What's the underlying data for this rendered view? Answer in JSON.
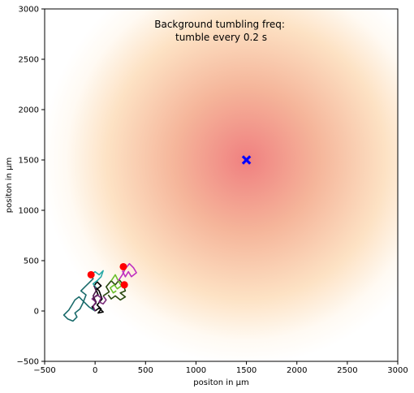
{
  "chart_data": {
    "type": "scatter",
    "title": "",
    "annotation": [
      "Background tumbling freq:",
      "tumble every 0.2 s"
    ],
    "xlabel": "positon in µm",
    "ylabel": "positon in µm",
    "xlim": [
      -500,
      3000
    ],
    "ylim": [
      -500,
      3000
    ],
    "x_ticks": [
      -500,
      0,
      500,
      1000,
      1500,
      2000,
      2500,
      3000
    ],
    "y_ticks": [
      -500,
      0,
      500,
      1000,
      1500,
      2000,
      2500,
      3000
    ],
    "grid": false,
    "background": {
      "type": "radial-gradient",
      "center": [
        1500,
        1500
      ],
      "colors": [
        "#f08080",
        "#f5b59a",
        "#fde2c4",
        "#fffaf3",
        "#ffffff"
      ]
    },
    "source": {
      "x": 1500,
      "y": 1500,
      "marker": "x",
      "color": "#0000ff"
    },
    "trajectories": [
      {
        "color": "#000000",
        "points": [
          [
            0,
            0
          ],
          [
            -30,
            40
          ],
          [
            10,
            80
          ],
          [
            -20,
            130
          ],
          [
            30,
            160
          ],
          [
            10,
            210
          ],
          [
            60,
            250
          ],
          [
            20,
            290
          ],
          [
            -10,
            250
          ],
          [
            40,
            200
          ],
          [
            70,
            120
          ],
          [
            20,
            60
          ],
          [
            60,
            20
          ],
          [
            30,
            -20
          ],
          [
            80,
            -10
          ],
          [
            40,
            30
          ],
          [
            0,
            0
          ]
        ]
      },
      {
        "color": "#1a6b6b",
        "points": [
          [
            0,
            0
          ],
          [
            -60,
            40
          ],
          [
            -110,
            90
          ],
          [
            -160,
            140
          ],
          [
            -200,
            110
          ],
          [
            -230,
            60
          ],
          [
            -260,
            10
          ],
          [
            -310,
            -40
          ],
          [
            -270,
            -80
          ],
          [
            -220,
            -100
          ],
          [
            -180,
            -60
          ],
          [
            -200,
            -20
          ],
          [
            -150,
            20
          ],
          [
            -120,
            80
          ],
          [
            -90,
            160
          ],
          [
            -140,
            200
          ],
          [
            -100,
            240
          ],
          [
            -60,
            280
          ],
          [
            -20,
            320
          ],
          [
            -40,
            360
          ]
        ]
      },
      {
        "color": "#2aaaa8",
        "points": [
          [
            -40,
            360
          ],
          [
            0,
            390
          ],
          [
            40,
            360
          ],
          [
            80,
            400
          ],
          [
            60,
            340
          ],
          [
            20,
            300
          ],
          [
            -20,
            270
          ],
          [
            10,
            230
          ]
        ]
      },
      {
        "color": "#7a2a7a",
        "points": [
          [
            0,
            0
          ],
          [
            -20,
            50
          ],
          [
            10,
            90
          ],
          [
            -30,
            120
          ],
          [
            20,
            160
          ],
          [
            60,
            130
          ],
          [
            40,
            90
          ],
          [
            80,
            70
          ],
          [
            110,
            110
          ],
          [
            80,
            150
          ]
        ]
      },
      {
        "color": "#4a1a4a",
        "points": [
          [
            10,
            90
          ],
          [
            -20,
            150
          ],
          [
            10,
            200
          ],
          [
            -10,
            250
          ]
        ]
      },
      {
        "color": "#2a4a10",
        "points": [
          [
            80,
            150
          ],
          [
            140,
            190
          ],
          [
            110,
            240
          ],
          [
            160,
            300
          ],
          [
            200,
            260
          ],
          [
            240,
            310
          ],
          [
            280,
            260
          ],
          [
            300,
            200
          ],
          [
            250,
            180
          ],
          [
            300,
            140
          ],
          [
            250,
            110
          ],
          [
            200,
            150
          ],
          [
            160,
            120
          ],
          [
            130,
            160
          ]
        ]
      },
      {
        "color": "#6abf2a",
        "points": [
          [
            160,
            300
          ],
          [
            200,
            360
          ],
          [
            230,
            300
          ],
          [
            260,
            250
          ],
          [
            220,
            220
          ],
          [
            190,
            260
          ],
          [
            150,
            230
          ],
          [
            180,
            180
          ],
          [
            210,
            200
          ]
        ]
      },
      {
        "color": "#c030c0",
        "points": [
          [
            230,
            300
          ],
          [
            270,
            360
          ],
          [
            300,
            420
          ],
          [
            340,
            470
          ],
          [
            380,
            430
          ],
          [
            410,
            380
          ],
          [
            360,
            340
          ],
          [
            330,
            390
          ],
          [
            300,
            340
          ],
          [
            270,
            400
          ]
        ]
      }
    ],
    "endpoints": [
      {
        "x": -40,
        "y": 360,
        "color": "#ff0000"
      },
      {
        "x": 280,
        "y": 440,
        "color": "#ff0000"
      },
      {
        "x": 290,
        "y": 260,
        "color": "#ff0000"
      }
    ]
  }
}
